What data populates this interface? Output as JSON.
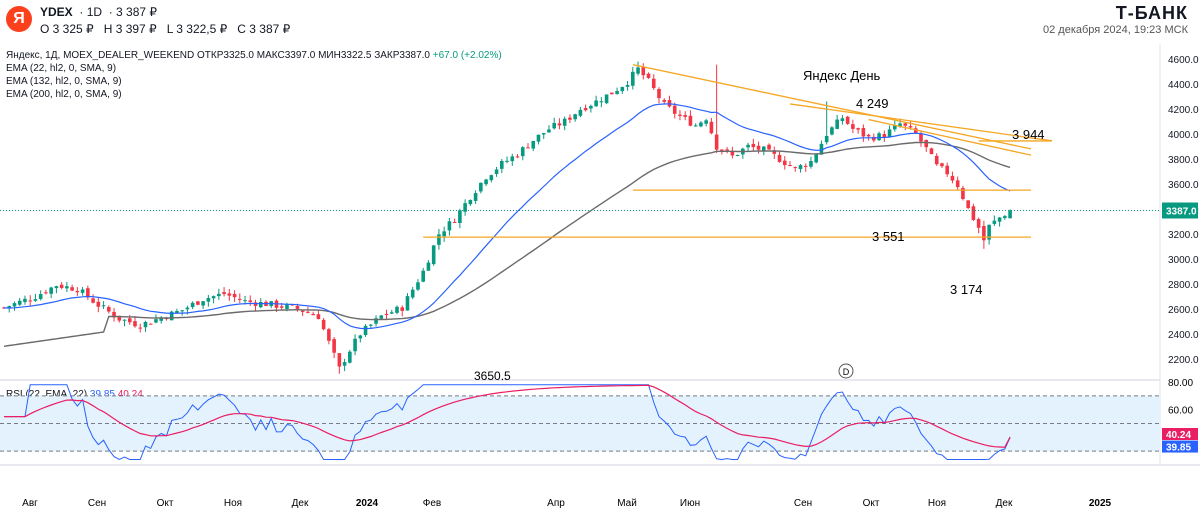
{
  "header": {
    "logo_letter": "Я",
    "symbol": "YDEX",
    "interval": "1D",
    "price_header": "3 387 ₽",
    "ohlc": {
      "o": "O 3 325 ₽",
      "h": "H 3 397 ₽",
      "l": "L 3 322,5 ₽",
      "c": "C 3 387 ₽"
    },
    "brand": "Т-БАНК",
    "datetime": "02 декабря 2024, 19:23 МСК"
  },
  "legend": {
    "main": "Яндекс, 1Д, MOEX_DEALER_WEEKEND",
    "open": "ОТКР3325.0",
    "high": "МАКС3397.0",
    "low": "МИН3322.5",
    "close": "ЗАКР3387.0",
    "change": "+67.0 (+2.02%)",
    "ema1": "EMA (22, hl2, 0, SMA, 9)",
    "ema2": "EMA (132, hl2, 0, SMA, 9)",
    "ema3": "EMA (200, hl2, 0, SMA, 9)",
    "rsi_label": "RSI (22, EMA, 22)",
    "rsi_val": "39.85",
    "rsi_ma_val": "40.24"
  },
  "colors": {
    "up": "#089981",
    "down": "#f23645",
    "ema_fast": "#2962ff",
    "ema_slow": "#6b6b6b",
    "trend": "#f5a623",
    "rsi": "#2962ff",
    "rsi_ma": "#e91e63",
    "rsi_band": "#e3f2fd"
  },
  "chart_data": {
    "type": "candlestick",
    "price_axis": {
      "ticks": [
        4600,
        4400,
        4200,
        4000,
        3800,
        3600,
        3400,
        3200,
        3000,
        2800,
        2600,
        2400,
        2200
      ],
      "labels": [
        "4600.0",
        "4400.0",
        "4200.0",
        "4000.0",
        "3800.0",
        "3600.0",
        "3400.0",
        "3200.0",
        "3000.0",
        "2800.0",
        "2600.0",
        "2400.0",
        "2200.0"
      ],
      "range": [
        2030,
        4720
      ]
    },
    "last_price": 3387,
    "last_price_label": "3387.0",
    "time_axis": [
      "Авг",
      "Сен",
      "Окт",
      "Ноя",
      "Дек",
      "2024",
      "Фев",
      "Апр",
      "Май",
      "Июн",
      "Сен",
      "Окт",
      "Ноя",
      "Дек",
      "2025"
    ],
    "anchors": [
      [
        0,
        2610
      ],
      [
        6,
        2700
      ],
      [
        10,
        2790
      ],
      [
        14,
        2760
      ],
      [
        18,
        2630
      ],
      [
        22,
        2520
      ],
      [
        26,
        2470
      ],
      [
        30,
        2530
      ],
      [
        34,
        2590
      ],
      [
        38,
        2680
      ],
      [
        42,
        2720
      ],
      [
        46,
        2660
      ],
      [
        50,
        2640
      ],
      [
        56,
        2600
      ],
      [
        60,
        2540
      ],
      [
        62,
        2330
      ],
      [
        64,
        2120
      ],
      [
        66,
        2270
      ],
      [
        68,
        2400
      ],
      [
        72,
        2540
      ],
      [
        76,
        2610
      ],
      [
        80,
        2900
      ],
      [
        83,
        3200
      ],
      [
        86,
        3320
      ],
      [
        89,
        3500
      ],
      [
        92,
        3660
      ],
      [
        95,
        3760
      ],
      [
        98,
        3840
      ],
      [
        101,
        3950
      ],
      [
        104,
        4040
      ],
      [
        107,
        4100
      ],
      [
        110,
        4200
      ],
      [
        113,
        4260
      ],
      [
        116,
        4330
      ],
      [
        119,
        4420
      ],
      [
        121,
        4520
      ],
      [
        123,
        4420
      ],
      [
        126,
        4230
      ],
      [
        129,
        4140
      ],
      [
        132,
        4070
      ],
      [
        134,
        4130
      ],
      [
        136,
        3900
      ],
      [
        139,
        3820
      ],
      [
        142,
        3900
      ],
      [
        145,
        3870
      ],
      [
        148,
        3800
      ],
      [
        151,
        3720
      ],
      [
        154,
        3780
      ],
      [
        157,
        4000
      ],
      [
        160,
        4130
      ],
      [
        162,
        4040
      ],
      [
        165,
        3970
      ],
      [
        168,
        3990
      ],
      [
        171,
        4080
      ],
      [
        174,
        4000
      ],
      [
        176,
        3880
      ],
      [
        178,
        3740
      ],
      [
        180,
        3690
      ],
      [
        182,
        3590
      ],
      [
        184,
        3400
      ],
      [
        186,
        3250
      ],
      [
        187,
        3150
      ],
      [
        188,
        3260
      ],
      [
        190,
        3330
      ],
      [
        192,
        3387
      ]
    ],
    "ema_fast_note": "EMA 22",
    "ema_slow_note": "EMA 132/200",
    "rsi": {
      "ticks": [
        80,
        60,
        40
      ],
      "labels": [
        "80.00",
        "60.00"
      ],
      "range": [
        20,
        80
      ],
      "upper": 70,
      "lower": 30,
      "mid": 50,
      "value": 39.85,
      "ma": 40.24
    },
    "annotations": {
      "title": "Яндекс День",
      "level_4249": "4 249",
      "level_3944": "3 944",
      "level_3551": "3 551",
      "level_3174": "3 174",
      "level_3650": "3650.5",
      "dividend_marker": "D"
    },
    "trendlines": [
      {
        "from": [
          120,
          4555
        ],
        "to": [
          196,
          3880
        ]
      },
      {
        "from": [
          150,
          4240
        ],
        "to": [
          200,
          3945
        ]
      },
      {
        "from": [
          165,
          4115
        ],
        "to": [
          196,
          3830
        ]
      }
    ],
    "levels": [
      {
        "price": 3550,
        "from": 120,
        "to": 196
      },
      {
        "price": 3174,
        "from": 80,
        "to": 196
      },
      {
        "price": 3944,
        "from": 186,
        "to": 200
      }
    ]
  }
}
